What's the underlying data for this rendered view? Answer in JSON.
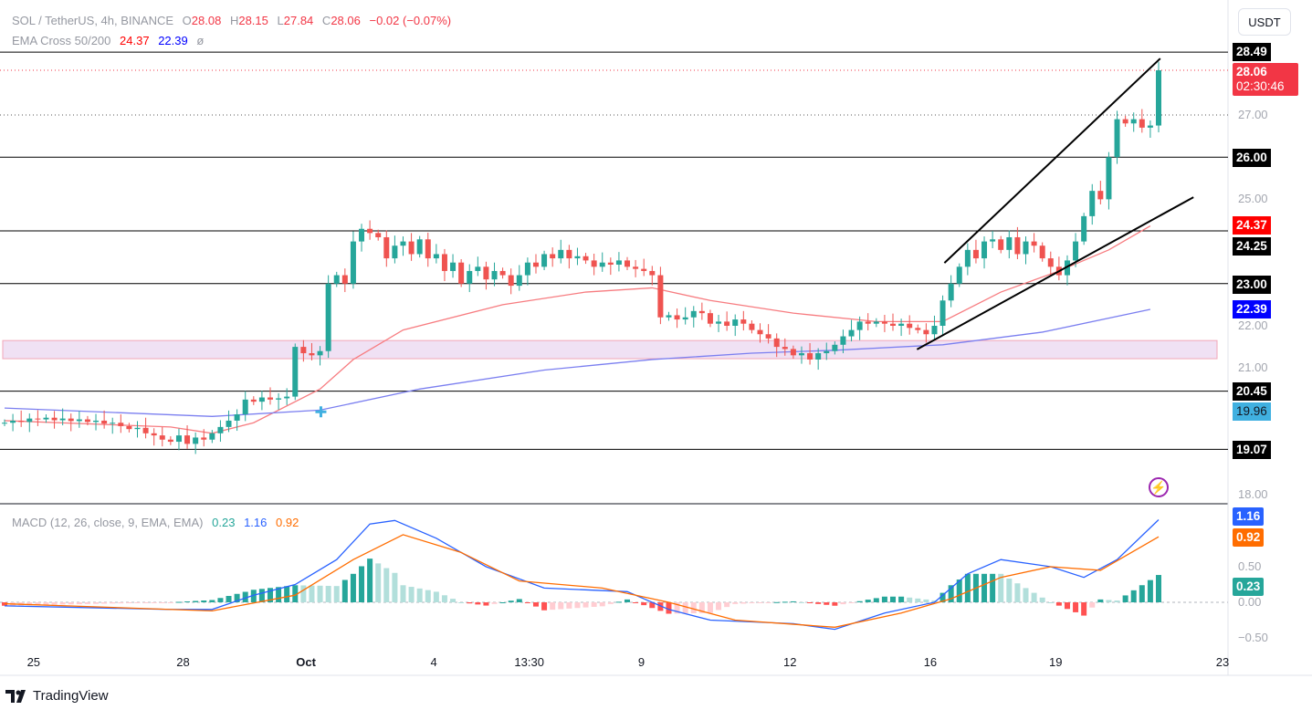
{
  "header": {
    "symbol": "SOL / TetherUS, 4h, BINANCE",
    "o_label": "O",
    "o": "28.08",
    "h_label": "H",
    "h": "28.15",
    "l_label": "L",
    "l": "27.84",
    "c_label": "C",
    "c": "28.06",
    "change": "−0.02 (−0.07%)"
  },
  "ema_legend": {
    "name": "EMA Cross 50/200",
    "ema50": "24.37",
    "ema200": "22.39",
    "symbol": "ø"
  },
  "macd_legend": {
    "name": "MACD (12, 26, close, 9, EMA, EMA)",
    "hist": "0.23",
    "macd": "1.16",
    "signal": "0.92"
  },
  "currency_button": "USDT",
  "brand": "TradingView",
  "price_tags": {
    "hl1": "28.49",
    "last": "28.06",
    "countdown": "02:30:46",
    "hl2": "26.00",
    "ema50": "24.37",
    "hl3": "24.25",
    "hl4": "23.00",
    "ema200": "22.39",
    "hl5": "20.45",
    "cross": "19.96",
    "hl6": "19.07",
    "macd": "1.16",
    "signal": "0.92",
    "hist": "0.23"
  },
  "colors": {
    "up": "#26a69a",
    "down": "#ef5350",
    "ema50": "#f77c80",
    "ema200": "#7b7ff0",
    "macd": "#2962ff",
    "signal": "#ff6d00",
    "zone": "#e9d4f0"
  },
  "chart_data": {
    "type": "candlestick",
    "price_axis": {
      "ticks": [
        "27.00",
        "25.00",
        "22.00",
        "21.00",
        "18.00"
      ],
      "range": [
        17.6,
        29.2
      ]
    },
    "x_ticks": [
      {
        "label": "25",
        "index": 3.5
      },
      {
        "label": "28",
        "index": 21.5
      },
      {
        "label": "Oct",
        "index": 36.3
      },
      {
        "label": "4",
        "index": 51.7
      },
      {
        "label": "13:30",
        "index": 63.2
      },
      {
        "label": "9",
        "index": 76.7
      },
      {
        "label": "12",
        "index": 94.6
      },
      {
        "label": "16",
        "index": 111.5
      },
      {
        "label": "19",
        "index": 126.6
      },
      {
        "label": "23",
        "index": 146.7
      }
    ],
    "closes": [
      19.7,
      19.75,
      19.72,
      19.8,
      19.78,
      19.82,
      19.76,
      19.8,
      19.74,
      19.78,
      19.72,
      19.75,
      19.68,
      19.7,
      19.62,
      19.55,
      19.58,
      19.45,
      19.4,
      19.3,
      19.25,
      19.4,
      19.2,
      19.35,
      19.3,
      19.45,
      19.6,
      19.75,
      19.9,
      20.25,
      20.2,
      20.3,
      20.25,
      20.28,
      20.32,
      21.5,
      21.35,
      21.3,
      21.4,
      23.0,
      23.2,
      23.0,
      24.0,
      24.3,
      24.2,
      24.1,
      23.6,
      23.9,
      24.0,
      23.7,
      24.05,
      23.6,
      23.7,
      23.3,
      23.5,
      23.0,
      23.3,
      23.4,
      23.1,
      23.3,
      23.2,
      22.95,
      23.2,
      23.5,
      23.4,
      23.7,
      23.6,
      23.8,
      23.6,
      23.65,
      23.55,
      23.4,
      23.5,
      23.45,
      23.55,
      23.4,
      23.35,
      23.3,
      23.2,
      22.2,
      22.25,
      22.15,
      22.2,
      22.35,
      22.3,
      22.05,
      22.1,
      22.0,
      22.15,
      22.05,
      21.9,
      21.8,
      21.7,
      21.5,
      21.45,
      21.3,
      21.35,
      21.2,
      21.35,
      21.4,
      21.55,
      21.75,
      21.9,
      22.1,
      22.05,
      22.1,
      22.05,
      22.0,
      22.05,
      21.95,
      21.9,
      21.8,
      22.0,
      22.6,
      23.0,
      23.4,
      23.8,
      23.6,
      24.0,
      24.05,
      23.8,
      24.1,
      23.7,
      24.0,
      23.9,
      23.6,
      23.4,
      23.2,
      23.55,
      24.0,
      24.6,
      25.2,
      25.0,
      26.0,
      26.9,
      26.8,
      26.9,
      26.7,
      26.75,
      28.06
    ],
    "ema50": [
      [
        0,
        19.75
      ],
      [
        20,
        19.6
      ],
      [
        25,
        19.45
      ],
      [
        30,
        19.7
      ],
      [
        38,
        20.5
      ],
      [
        42,
        21.2
      ],
      [
        48,
        21.9
      ],
      [
        60,
        22.5
      ],
      [
        70,
        22.8
      ],
      [
        78,
        22.9
      ],
      [
        85,
        22.6
      ],
      [
        95,
        22.3
      ],
      [
        105,
        22.1
      ],
      [
        113,
        22.1
      ],
      [
        120,
        22.8
      ],
      [
        127,
        23.3
      ],
      [
        133,
        23.8
      ],
      [
        138,
        24.37
      ]
    ],
    "ema200": [
      [
        0,
        20.05
      ],
      [
        25,
        19.85
      ],
      [
        38,
        20.0
      ],
      [
        50,
        20.5
      ],
      [
        65,
        20.95
      ],
      [
        78,
        21.2
      ],
      [
        90,
        21.35
      ],
      [
        100,
        21.42
      ],
      [
        113,
        21.55
      ],
      [
        125,
        21.85
      ],
      [
        138,
        22.39
      ]
    ],
    "ema_cross": {
      "index": 38.1,
      "value": 19.96
    },
    "horizontal_levels": [
      28.49,
      26.0,
      24.25,
      23.0,
      20.45,
      19.07
    ],
    "dotted_levels": [
      28.06,
      27.0
    ],
    "zone": [
      21.22,
      21.65
    ],
    "trendlines": [
      [
        [
          113.2,
          23.49
        ],
        [
          139.2,
          28.34
        ]
      ],
      [
        [
          109.9,
          21.44
        ],
        [
          143.2,
          25.05
        ]
      ]
    ],
    "macd_axis": {
      "ticks": [
        "0.50",
        "0.00",
        "−0.50"
      ]
    },
    "macd": [
      [
        0,
        -0.05
      ],
      [
        20,
        -0.1
      ],
      [
        25,
        -0.1
      ],
      [
        30,
        0.1
      ],
      [
        35,
        0.25
      ],
      [
        40,
        0.6
      ],
      [
        44,
        1.1
      ],
      [
        47,
        1.15
      ],
      [
        52,
        0.9
      ],
      [
        58,
        0.5
      ],
      [
        65,
        0.2
      ],
      [
        75,
        0.15
      ],
      [
        80,
        -0.1
      ],
      [
        85,
        -0.25
      ],
      [
        95,
        -0.3
      ],
      [
        100,
        -0.38
      ],
      [
        106,
        -0.15
      ],
      [
        112,
        0.0
      ],
      [
        116,
        0.4
      ],
      [
        120,
        0.6
      ],
      [
        126,
        0.5
      ],
      [
        130,
        0.35
      ],
      [
        134,
        0.6
      ],
      [
        139,
        1.16
      ]
    ],
    "signal": [
      [
        0,
        -0.02
      ],
      [
        25,
        -0.12
      ],
      [
        35,
        0.1
      ],
      [
        42,
        0.6
      ],
      [
        48,
        0.95
      ],
      [
        55,
        0.7
      ],
      [
        62,
        0.3
      ],
      [
        72,
        0.2
      ],
      [
        80,
        0.0
      ],
      [
        88,
        -0.25
      ],
      [
        100,
        -0.35
      ],
      [
        108,
        -0.15
      ],
      [
        114,
        0.05
      ],
      [
        120,
        0.35
      ],
      [
        126,
        0.5
      ],
      [
        132,
        0.45
      ],
      [
        139,
        0.92
      ]
    ]
  }
}
